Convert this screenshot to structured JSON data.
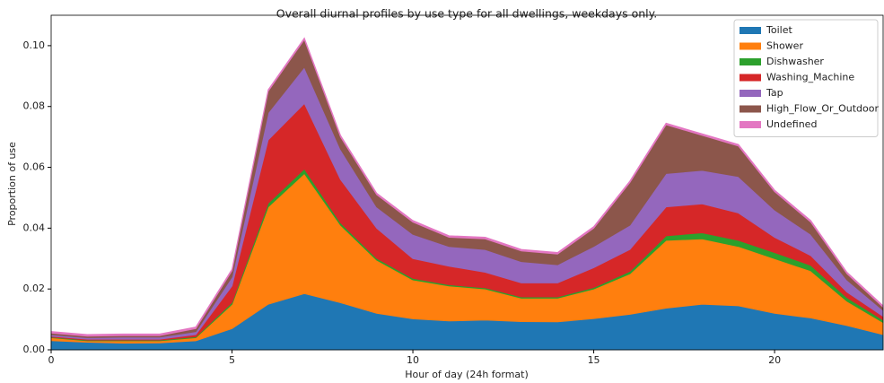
{
  "chart_data": {
    "type": "stacked_area",
    "title": "Overall diurnal profiles by use type for all dwellings, weekdays only.",
    "x_label": "Hour of day (24h format)",
    "y_label": "Proportion of use",
    "x": [
      0,
      1,
      2,
      3,
      4,
      5,
      6,
      7,
      8,
      9,
      10,
      11,
      12,
      13,
      14,
      15,
      16,
      17,
      18,
      19,
      20,
      21,
      22,
      23
    ],
    "xlim": [
      0,
      23
    ],
    "xticks": [
      0,
      5,
      10,
      15,
      20
    ],
    "ylim": [
      0,
      0.11
    ],
    "yticks": [
      {
        "value": 0,
        "label": "0.00"
      },
      {
        "value": 0.02,
        "label": "0.02"
      },
      {
        "value": 0.04,
        "label": "0.04"
      },
      {
        "value": 0.06,
        "label": "0.06"
      },
      {
        "value": 0.08,
        "label": "0.08"
      },
      {
        "value": 0.1,
        "label": "0.10"
      }
    ],
    "legend": "upper right",
    "series": [
      {
        "name": "Toilet",
        "color": "#1f77b4",
        "values": [
          0.003,
          0.0025,
          0.0022,
          0.0023,
          0.003,
          0.007,
          0.015,
          0.0185,
          0.0155,
          0.012,
          0.0102,
          0.0095,
          0.0098,
          0.0093,
          0.0092,
          0.0103,
          0.0117,
          0.0137,
          0.015,
          0.0145,
          0.012,
          0.0105,
          0.008,
          0.005
        ]
      },
      {
        "name": "Shower",
        "color": "#ff7f0e",
        "values": [
          0.001,
          0.0005,
          0.0008,
          0.0007,
          0.001,
          0.008,
          0.032,
          0.0395,
          0.0255,
          0.0175,
          0.0128,
          0.0115,
          0.0102,
          0.0077,
          0.0078,
          0.0097,
          0.0133,
          0.0223,
          0.0215,
          0.0195,
          0.018,
          0.0155,
          0.008,
          0.004
        ]
      },
      {
        "name": "Dishwasher",
        "color": "#2ca02c",
        "values": [
          0.0002,
          0.0002,
          0.0002,
          0.0002,
          0.0003,
          0.0006,
          0.0012,
          0.0015,
          0.0008,
          0.0006,
          0.0005,
          0.0004,
          0.0004,
          0.0004,
          0.0004,
          0.0005,
          0.0008,
          0.0015,
          0.002,
          0.002,
          0.002,
          0.0018,
          0.0012,
          0.0008
        ]
      },
      {
        "name": "Washing_Machine",
        "color": "#d62728",
        "values": [
          0.0003,
          0.0003,
          0.0003,
          0.0003,
          0.0007,
          0.0054,
          0.0208,
          0.0215,
          0.0142,
          0.0099,
          0.0065,
          0.0061,
          0.0051,
          0.0046,
          0.0046,
          0.0065,
          0.0072,
          0.0095,
          0.0095,
          0.009,
          0.005,
          0.0032,
          0.0018,
          0.0012
        ]
      },
      {
        "name": "Tap",
        "color": "#9467bd",
        "values": [
          0.0005,
          0.0005,
          0.0007,
          0.0007,
          0.001,
          0.003,
          0.009,
          0.012,
          0.01,
          0.007,
          0.008,
          0.0065,
          0.0075,
          0.007,
          0.006,
          0.007,
          0.008,
          0.011,
          0.011,
          0.012,
          0.009,
          0.007,
          0.004,
          0.002
        ]
      },
      {
        "name": "High_Flow_Or_Outdoor",
        "color": "#8c564b",
        "values": [
          0.0005,
          0.0005,
          0.0005,
          0.0005,
          0.001,
          0.002,
          0.007,
          0.009,
          0.004,
          0.004,
          0.004,
          0.003,
          0.0035,
          0.0035,
          0.0035,
          0.006,
          0.014,
          0.016,
          0.0115,
          0.01,
          0.006,
          0.004,
          0.002,
          0.001
        ]
      },
      {
        "name": "Undefined",
        "color": "#e377c2",
        "values": [
          0.0005,
          0.0005,
          0.0005,
          0.0005,
          0.0005,
          0.0005,
          0.0005,
          0.0005,
          0.0005,
          0.0005,
          0.0005,
          0.0005,
          0.0005,
          0.0005,
          0.0005,
          0.0005,
          0.0005,
          0.0005,
          0.0005,
          0.0005,
          0.0005,
          0.0005,
          0.0005,
          0.0005
        ]
      }
    ]
  }
}
